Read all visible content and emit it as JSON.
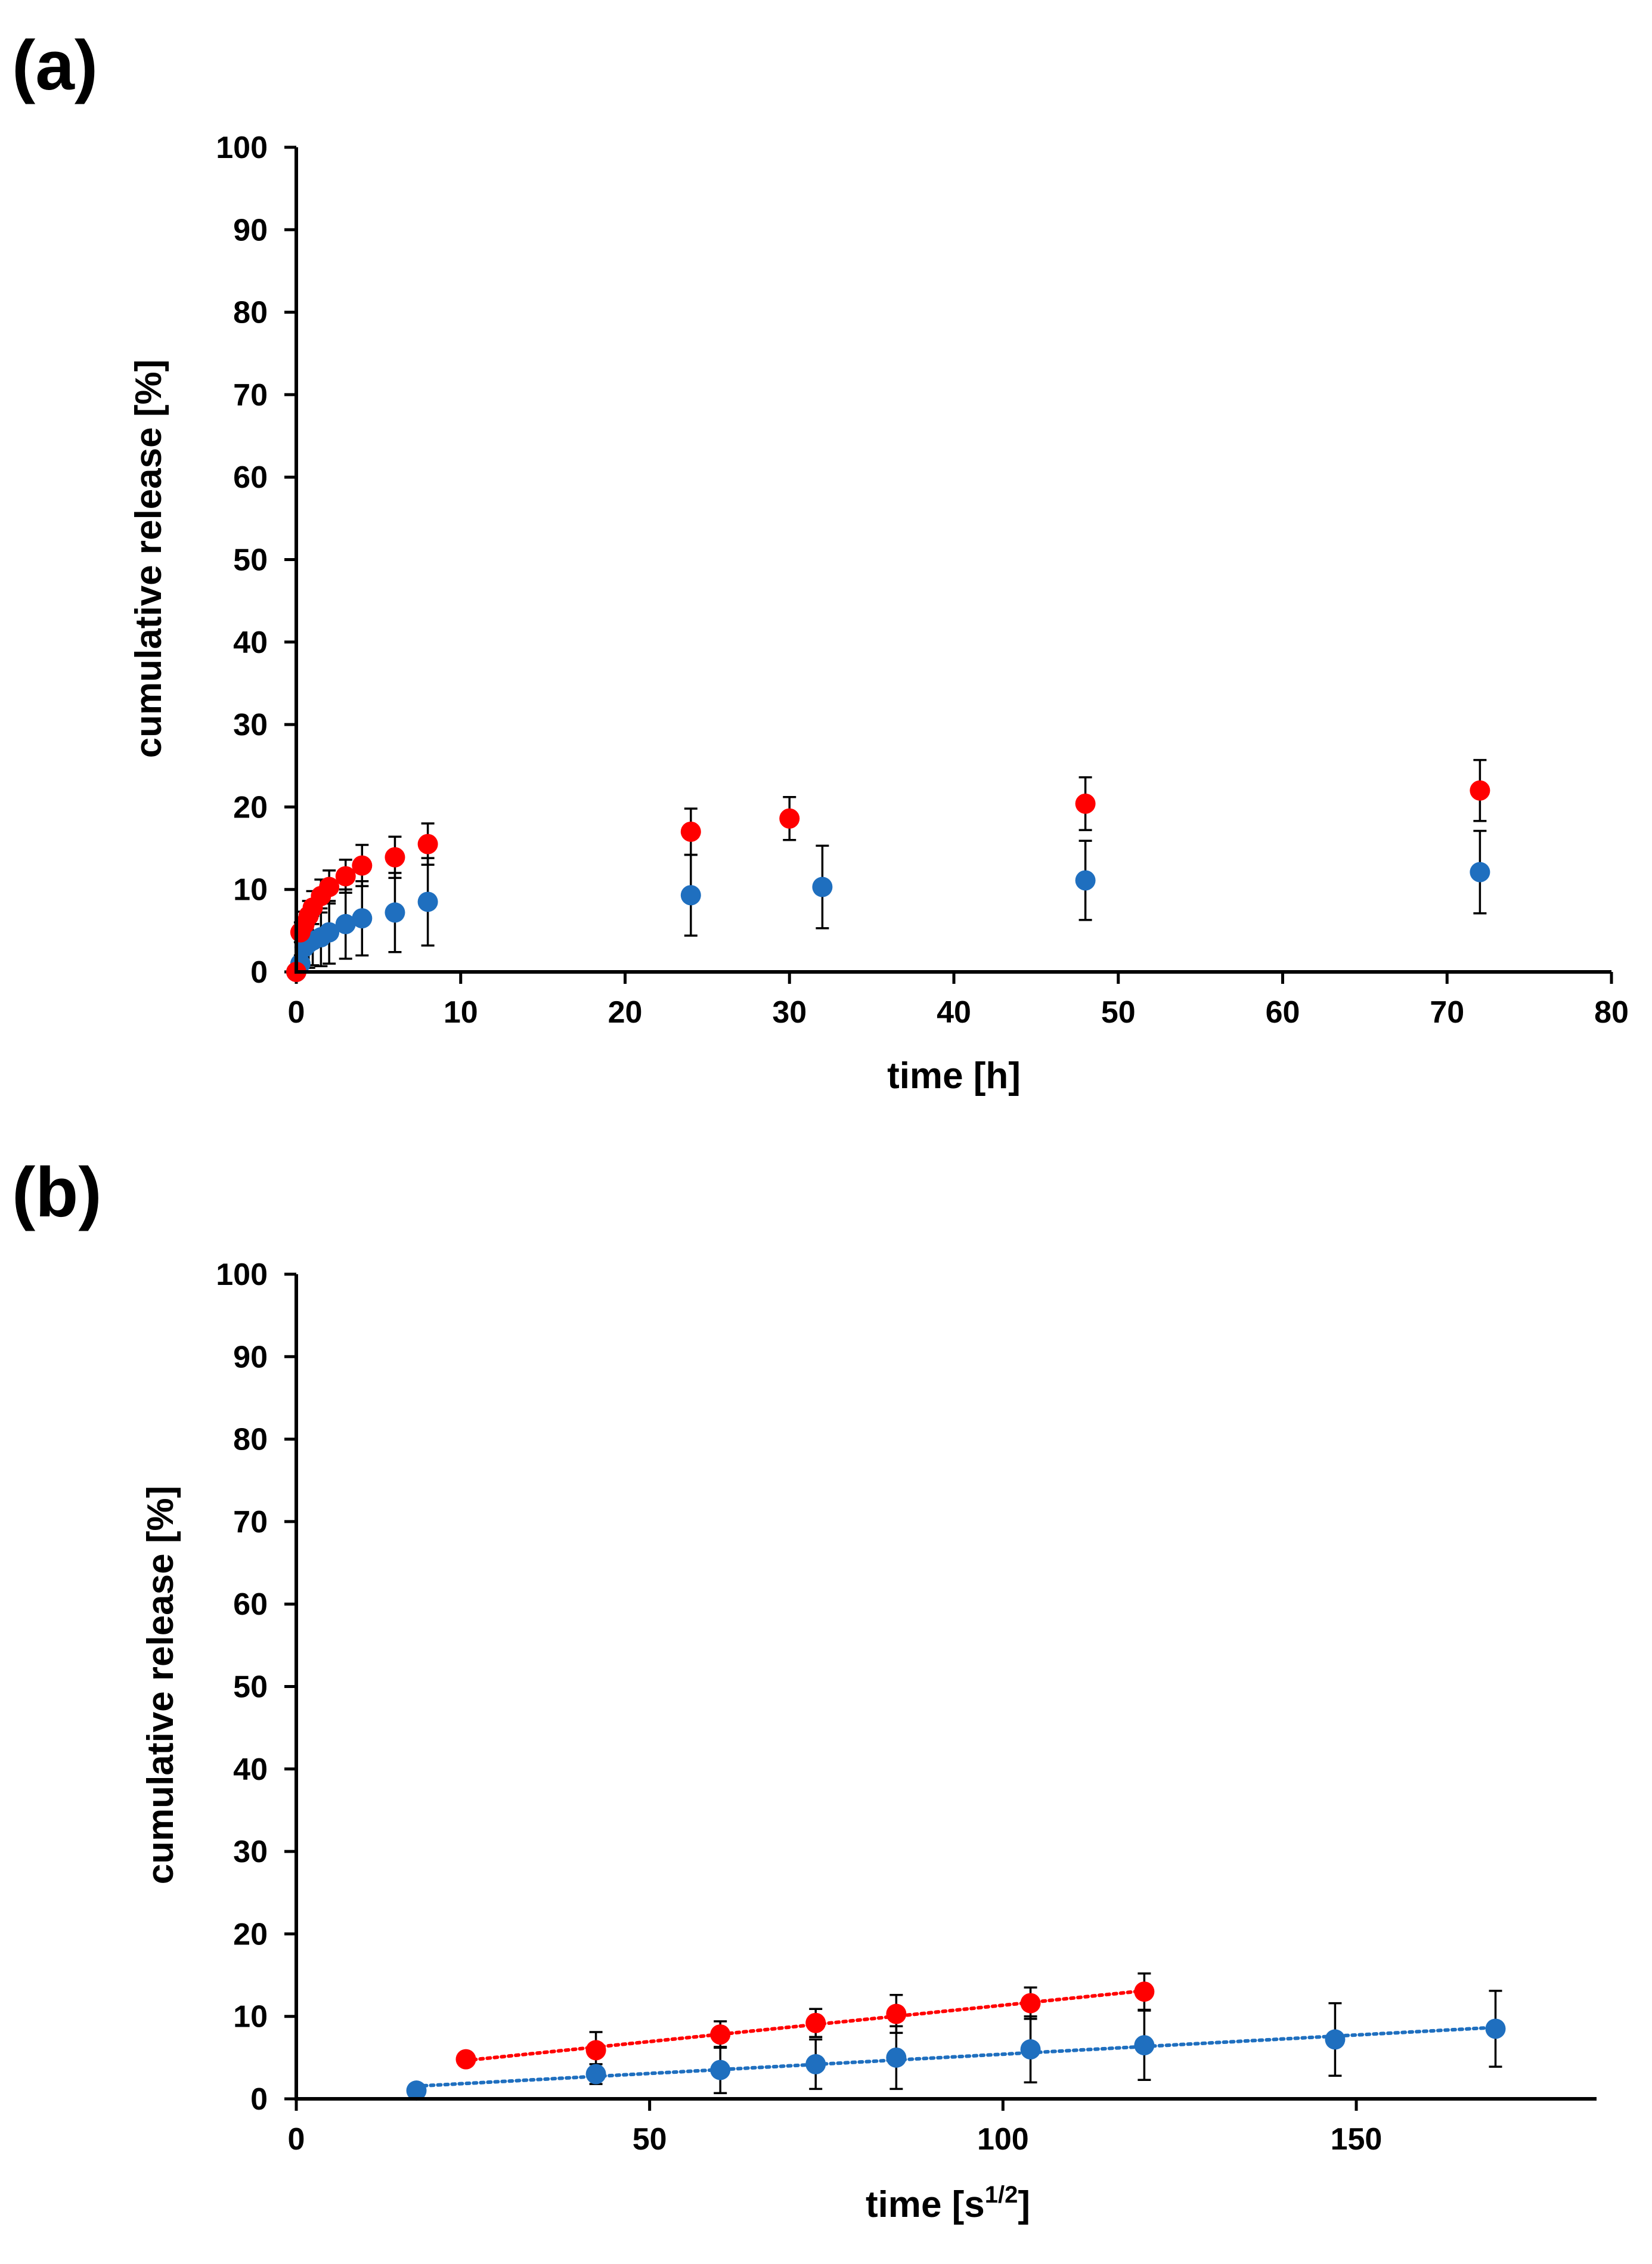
{
  "chart_data": [
    {
      "panel_label": "(a)",
      "type": "scatter",
      "xlabel": "time [h]",
      "ylabel": "cumulative release [%]",
      "xlim": [
        0,
        80
      ],
      "ylim": [
        0,
        100
      ],
      "x_ticks": [
        0,
        10,
        20,
        30,
        40,
        50,
        60,
        70,
        80
      ],
      "y_ticks": [
        0,
        10,
        20,
        30,
        40,
        50,
        60,
        70,
        80,
        90,
        100
      ],
      "grid": false,
      "series": [
        {
          "name": "blue",
          "color": "#1f6fbf",
          "x": [
            0,
            0.25,
            0.5,
            0.75,
            1,
            1.5,
            2,
            3,
            4,
            6,
            8,
            24,
            32,
            48,
            72
          ],
          "y": [
            0,
            1.0,
            3.0,
            3.5,
            3.8,
            4.2,
            4.8,
            5.8,
            6.5,
            7.2,
            8.5,
            9.3,
            10.3,
            11.1,
            12.1
          ],
          "err": [
            0,
            1.0,
            2.5,
            3.0,
            3.0,
            3.5,
            3.8,
            4.2,
            4.5,
            4.8,
            5.3,
            4.9,
            5.0,
            4.8,
            5.0
          ],
          "trendline": false
        },
        {
          "name": "red",
          "color": "#ff0000",
          "x": [
            0,
            0.25,
            0.5,
            0.75,
            1,
            1.5,
            2,
            3,
            4,
            6,
            8,
            24,
            30,
            48,
            72
          ],
          "y": [
            0,
            4.8,
            5.8,
            6.8,
            7.8,
            9.2,
            10.3,
            11.6,
            12.9,
            13.9,
            15.5,
            17.0,
            18.6,
            20.4,
            22.0
          ],
          "err": [
            0,
            1.2,
            1.5,
            1.8,
            2.0,
            2.0,
            2.0,
            2.0,
            2.5,
            2.5,
            2.5,
            2.8,
            2.6,
            3.2,
            3.7
          ],
          "trendline": false
        }
      ]
    },
    {
      "panel_label": "(b)",
      "type": "scatter",
      "xlabel": "time [s",
      "xlabel_superscript": "1/2",
      "xlabel_suffix": "]",
      "ylabel": "cumulative release [%]",
      "xlim": [
        0,
        184
      ],
      "ylim": [
        0,
        100
      ],
      "x_ticks": [
        0,
        50,
        100,
        150
      ],
      "y_ticks": [
        0,
        10,
        20,
        30,
        40,
        50,
        60,
        70,
        80,
        90,
        100
      ],
      "grid": false,
      "series": [
        {
          "name": "blue",
          "color": "#1f6fbf",
          "x": [
            17,
            42.4,
            60,
            73.5,
            84.9,
            103.9,
            120,
            147,
            169.7
          ],
          "y": [
            1.0,
            3.0,
            3.5,
            4.2,
            5.0,
            6.0,
            6.5,
            7.2,
            8.5
          ],
          "err": [
            0.5,
            1.2,
            2.8,
            3.0,
            3.8,
            4.0,
            4.2,
            4.4,
            4.6
          ],
          "trendline": true
        },
        {
          "name": "red",
          "color": "#ff0000",
          "x": [
            24,
            42.4,
            60,
            73.5,
            84.9,
            103.9,
            120
          ],
          "y": [
            4.8,
            5.9,
            7.8,
            9.2,
            10.3,
            11.6,
            13.0
          ],
          "err": [
            0.5,
            2.2,
            1.6,
            1.7,
            2.3,
            1.9,
            2.2
          ],
          "trendline": true
        }
      ]
    }
  ]
}
